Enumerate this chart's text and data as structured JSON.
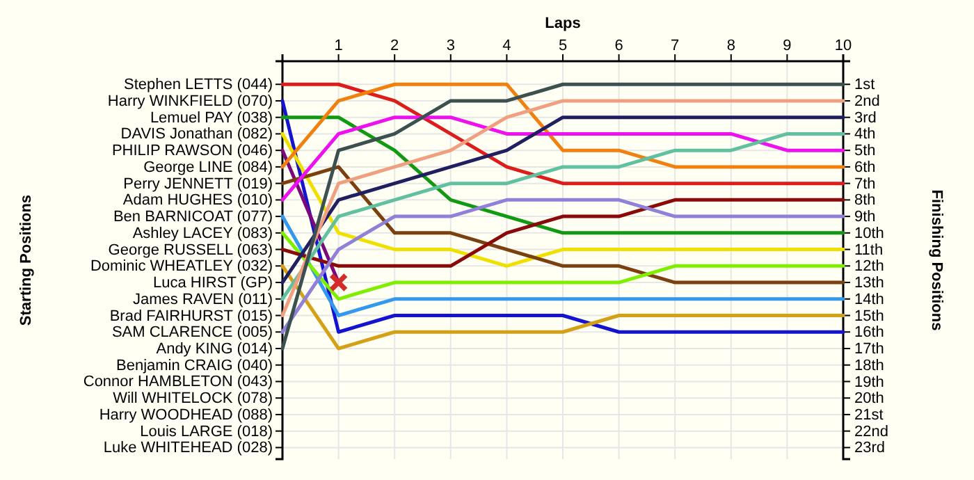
{
  "chart_data": {
    "type": "line",
    "xlabel": "Laps",
    "y2label": "Finishing Positions",
    "x": [
      0,
      1,
      2,
      3,
      4,
      5,
      6,
      7,
      8,
      9,
      10
    ],
    "xlim": [
      0,
      10
    ],
    "xticks": [
      1,
      2,
      3,
      4,
      5,
      6,
      7,
      8,
      9,
      10
    ],
    "annotations": [
      "Stephen LETTS (044)",
      "Harry WINKFIELD (070)",
      "Lemuel PAY (038)",
      "DAVIS Jonathan (082)",
      "PHILIP RAWSON (046)",
      "George LINE (084)",
      "Perry JENNETT (019)",
      "Adam HUGHES (010)",
      "Ben BARNICOAT (077)",
      "Ashley LACEY (083)",
      "George RUSSELL (063)",
      "Dominic WHEATLEY (032)",
      "Luca HIRST (GP)",
      "James RAVEN (011)",
      "Brad FAIRHURST (015)",
      "SAM CLARENCE (005)",
      "Andy KING (014)",
      "Benjamin CRAIG (040)",
      "Connor HAMBLETON (043)",
      "Will WHITELOCK (078)",
      "Harry WOODHEAD (088)",
      "Louis LARGE (018)",
      "Luke WHITEHEAD (028)",
      "Starting Positions"
    ],
    "y2lim": [
      23.7,
      -0.4
    ],
    "y2ticks": [
      {
        "value": 1,
        "label": "1st"
      },
      {
        "value": 2,
        "label": "2nd"
      },
      {
        "value": 3,
        "label": "3rd"
      },
      {
        "value": 4,
        "label": "4th"
      },
      {
        "value": 5,
        "label": "5th"
      },
      {
        "value": 6,
        "label": "6th"
      },
      {
        "value": 7,
        "label": "7th"
      },
      {
        "value": 8,
        "label": "8th"
      },
      {
        "value": 9,
        "label": "9th"
      },
      {
        "value": 10,
        "label": "10th"
      },
      {
        "value": 11,
        "label": "11th"
      },
      {
        "value": 12,
        "label": "12th"
      },
      {
        "value": 13,
        "label": "13th"
      },
      {
        "value": 14,
        "label": "14th"
      },
      {
        "value": 15,
        "label": "15th"
      },
      {
        "value": 16,
        "label": "16th"
      },
      {
        "value": 17,
        "label": "17th"
      },
      {
        "value": 18,
        "label": "18th"
      },
      {
        "value": 19,
        "label": "19th"
      },
      {
        "value": 20,
        "label": "20th"
      },
      {
        "value": 21,
        "label": "21st"
      },
      {
        "value": 22,
        "label": "22nd"
      },
      {
        "value": 23,
        "label": "23rd"
      }
    ],
    "grid": true,
    "marker": "none",
    "line_style": "solid",
    "series": [
      {
        "axis": "y2",
        "color": "#dd1c1c",
        "values": [
          1,
          1,
          2,
          4,
          6,
          7,
          7,
          7,
          7,
          7,
          7
        ]
      },
      {
        "axis": "y2",
        "color": "#1414d0",
        "values": [
          2,
          16,
          15,
          15,
          15,
          15,
          16,
          16,
          16,
          16,
          16
        ]
      },
      {
        "axis": "y2",
        "color": "#119911",
        "values": [
          3,
          3,
          5,
          8,
          9,
          10,
          10,
          10,
          10,
          10,
          10
        ]
      },
      {
        "axis": "y2",
        "color": "#f0e000",
        "values": [
          4,
          10,
          11,
          11,
          12,
          11,
          11,
          11,
          11,
          11,
          11
        ]
      },
      {
        "axis": "y2",
        "color": "#7a0a7a",
        "values": [
          5,
          13,
          null,
          null,
          null,
          null,
          null,
          null,
          null,
          null,
          null
        ]
      },
      {
        "axis": "y2",
        "color": "#f08010",
        "values": [
          6,
          2,
          1,
          1,
          1,
          5,
          5,
          6,
          6,
          6,
          6
        ]
      },
      {
        "axis": "y2",
        "color": "#7a4010",
        "values": [
          7,
          6,
          10,
          10,
          11,
          12,
          12,
          13,
          13,
          13,
          13
        ]
      },
      {
        "axis": "y2",
        "color": "#ee10ee",
        "values": [
          8,
          4,
          3,
          3,
          4,
          4,
          4,
          4,
          4,
          5,
          5
        ]
      },
      {
        "axis": "y2",
        "color": "#3399ee",
        "values": [
          9,
          15,
          14,
          14,
          14,
          14,
          14,
          14,
          14,
          14,
          14
        ]
      },
      {
        "axis": "y2",
        "color": "#80ee00",
        "values": [
          10,
          14,
          13,
          13,
          13,
          13,
          13,
          12,
          12,
          12,
          12
        ]
      },
      {
        "axis": "y2",
        "color": "#8a0a0a",
        "values": [
          11,
          12,
          12,
          12,
          10,
          9,
          9,
          8,
          8,
          8,
          8
        ]
      },
      {
        "axis": "y2",
        "color": "#d4a017",
        "values": [
          12,
          17,
          16,
          16,
          16,
          16,
          15,
          15,
          15,
          15,
          15
        ]
      },
      {
        "axis": "y2",
        "color": "#202060",
        "values": [
          13,
          8,
          7,
          6,
          5,
          3,
          3,
          3,
          3,
          3,
          3
        ]
      },
      {
        "axis": "y2",
        "color": "#60c0a0",
        "values": [
          14,
          9,
          8,
          7,
          7,
          6,
          6,
          5,
          5,
          4,
          4
        ]
      },
      {
        "axis": "y2",
        "color": "#f0a080",
        "values": [
          15,
          7,
          6,
          5,
          3,
          2,
          2,
          2,
          2,
          2,
          2
        ]
      },
      {
        "axis": "y2",
        "color": "#9080d8",
        "values": [
          16,
          11,
          9,
          9,
          8,
          8,
          8,
          9,
          9,
          9,
          9
        ]
      },
      {
        "axis": "y2",
        "color": "#3c5050",
        "values": [
          17,
          5,
          4,
          2,
          2,
          1,
          1,
          1,
          1,
          1,
          1
        ]
      },
      {
        "axis": "y2",
        "type": "scatter",
        "marker": "cross",
        "color": "#d42a2a",
        "x": [
          1
        ],
        "values": [
          13
        ]
      }
    ]
  }
}
